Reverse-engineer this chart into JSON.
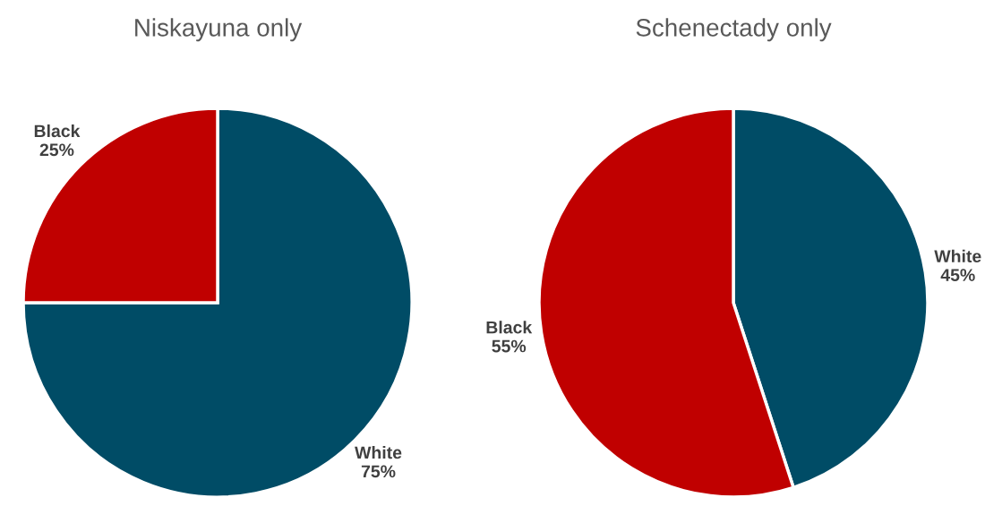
{
  "chart_data": [
    {
      "type": "pie",
      "title": "Niskayuna only",
      "categories": [
        "White",
        "Black"
      ],
      "values": [
        75,
        25
      ],
      "colors": [
        "#004c66",
        "#c00000"
      ],
      "value_labels": [
        "75%",
        "25%"
      ]
    },
    {
      "type": "pie",
      "title": "Schenectady only",
      "categories": [
        "White",
        "Black"
      ],
      "values": [
        45,
        55
      ],
      "colors": [
        "#004c66",
        "#c00000"
      ],
      "value_labels": [
        "45%",
        "55%"
      ]
    }
  ]
}
